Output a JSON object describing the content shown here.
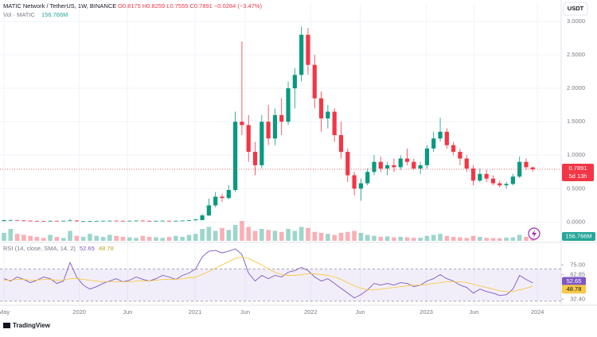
{
  "chart_data": {
    "type": "candlestick",
    "header": {
      "symbol": "MATIC Network / TetherUS, 1W, BINANCE",
      "ohlc_text": "O0.8175 H0.8259 L0.7555 C0.7891 −0.0284 (−3.47%)"
    },
    "currency_button": "USDT",
    "countdown": "5d 13h",
    "brand": "TradingView",
    "up_color": "#089981",
    "down_color": "#f23645",
    "ylim": [
      -0.28,
      3.26
    ],
    "yticks": [
      {
        "value": 0,
        "label": "0.0000"
      },
      {
        "value": 0.5,
        "label": "0.5000"
      },
      {
        "value": 1,
        "label": "1.0000"
      },
      {
        "value": 1.5,
        "label": "1.5000"
      },
      {
        "value": 2,
        "label": "2.0000"
      },
      {
        "value": 2.5,
        "label": "2.5000"
      },
      {
        "value": 3,
        "label": "3.0000"
      }
    ],
    "xlim": [
      -0.6,
      84.3
    ],
    "xticks": [
      {
        "value": 0,
        "label": "May"
      },
      {
        "value": 11.4,
        "label": "2020"
      },
      {
        "value": 18.7,
        "label": "Jun"
      },
      {
        "value": 28.9,
        "label": "2021"
      },
      {
        "value": 36.5,
        "label": "Jun"
      },
      {
        "value": 46.4,
        "label": "2022"
      },
      {
        "value": 53.9,
        "label": "Jun"
      },
      {
        "value": 63.9,
        "label": "2023"
      },
      {
        "value": 71.1,
        "label": "Jun"
      },
      {
        "value": 80.7,
        "label": "2024"
      }
    ],
    "candles": [
      [
        0.015,
        0.035,
        0.012,
        0.028
      ],
      [
        0.028,
        0.038,
        0.022,
        0.03
      ],
      [
        0.03,
        0.034,
        0.02,
        0.024
      ],
      [
        0.024,
        0.03,
        0.018,
        0.021
      ],
      [
        0.021,
        0.026,
        0.016,
        0.018
      ],
      [
        0.018,
        0.022,
        0.014,
        0.016
      ],
      [
        0.016,
        0.02,
        0.013,
        0.015
      ],
      [
        0.015,
        0.022,
        0.014,
        0.019
      ],
      [
        0.019,
        0.021,
        0.014,
        0.016
      ],
      [
        0.016,
        0.022,
        0.015,
        0.02
      ],
      [
        0.02,
        0.048,
        0.018,
        0.024
      ],
      [
        0.024,
        0.026,
        0.008,
        0.012
      ],
      [
        0.012,
        0.016,
        0.009,
        0.014
      ],
      [
        0.014,
        0.018,
        0.012,
        0.016
      ],
      [
        0.016,
        0.02,
        0.014,
        0.018
      ],
      [
        0.018,
        0.022,
        0.016,
        0.02
      ],
      [
        0.02,
        0.024,
        0.017,
        0.021
      ],
      [
        0.021,
        0.026,
        0.018,
        0.019
      ],
      [
        0.019,
        0.022,
        0.016,
        0.018
      ],
      [
        0.018,
        0.021,
        0.016,
        0.02
      ],
      [
        0.02,
        0.024,
        0.018,
        0.022
      ],
      [
        0.022,
        0.025,
        0.018,
        0.019
      ],
      [
        0.019,
        0.022,
        0.016,
        0.018
      ],
      [
        0.018,
        0.021,
        0.016,
        0.019
      ],
      [
        0.019,
        0.023,
        0.017,
        0.02
      ],
      [
        0.02,
        0.022,
        0.017,
        0.018
      ],
      [
        0.018,
        0.02,
        0.016,
        0.019
      ],
      [
        0.019,
        0.024,
        0.018,
        0.022
      ],
      [
        0.022,
        0.03,
        0.02,
        0.027
      ],
      [
        0.027,
        0.045,
        0.025,
        0.04
      ],
      [
        0.03,
        0.12,
        0.03,
        0.1
      ],
      [
        0.1,
        0.35,
        0.09,
        0.25
      ],
      [
        0.25,
        0.45,
        0.22,
        0.38
      ],
      [
        0.38,
        0.42,
        0.3,
        0.36
      ],
      [
        0.36,
        0.55,
        0.34,
        0.48
      ],
      [
        0.48,
        1.65,
        0.45,
        1.5
      ],
      [
        1.5,
        2.7,
        1.3,
        1.45
      ],
      [
        1.45,
        1.6,
        0.9,
        1.05
      ],
      [
        1.05,
        1.2,
        0.7,
        0.85
      ],
      [
        0.85,
        1.6,
        0.8,
        1.5
      ],
      [
        1.5,
        1.75,
        1.15,
        1.25
      ],
      [
        1.25,
        1.7,
        1.15,
        1.6
      ],
      [
        1.6,
        1.85,
        1.3,
        1.5
      ],
      [
        1.5,
        2.1,
        1.45,
        2.0
      ],
      [
        2.0,
        2.3,
        1.7,
        2.2
      ],
      [
        2.2,
        2.92,
        2.1,
        2.8
      ],
      [
        2.8,
        2.9,
        2.2,
        2.35
      ],
      [
        2.35,
        2.5,
        1.7,
        1.85
      ],
      [
        1.85,
        1.95,
        1.35,
        1.55
      ],
      [
        1.55,
        1.75,
        1.4,
        1.65
      ],
      [
        1.65,
        1.7,
        1.2,
        1.3
      ],
      [
        1.3,
        1.5,
        0.95,
        1.05
      ],
      [
        1.05,
        1.1,
        0.6,
        0.7
      ],
      [
        0.7,
        0.75,
        0.4,
        0.5
      ],
      [
        0.5,
        0.65,
        0.32,
        0.58
      ],
      [
        0.58,
        0.8,
        0.55,
        0.75
      ],
      [
        0.75,
        1.0,
        0.7,
        0.9
      ],
      [
        0.9,
        0.98,
        0.75,
        0.8
      ],
      [
        0.8,
        0.9,
        0.7,
        0.85
      ],
      [
        0.85,
        0.95,
        0.75,
        0.82
      ],
      [
        0.82,
        1.0,
        0.78,
        0.95
      ],
      [
        0.95,
        1.1,
        0.85,
        0.9
      ],
      [
        0.9,
        0.95,
        0.78,
        0.8
      ],
      [
        0.8,
        0.9,
        0.72,
        0.85
      ],
      [
        0.85,
        1.15,
        0.8,
        1.1
      ],
      [
        1.1,
        1.35,
        1.05,
        1.25
      ],
      [
        1.25,
        1.56,
        1.2,
        1.35
      ],
      [
        1.35,
        1.4,
        1.1,
        1.15
      ],
      [
        1.15,
        1.2,
        1.0,
        1.05
      ],
      [
        1.05,
        1.1,
        0.85,
        0.95
      ],
      [
        0.95,
        1.0,
        0.75,
        0.8
      ],
      [
        0.8,
        0.85,
        0.55,
        0.62
      ],
      [
        0.62,
        0.8,
        0.6,
        0.72
      ],
      [
        0.72,
        0.78,
        0.6,
        0.65
      ],
      [
        0.65,
        0.7,
        0.55,
        0.58
      ],
      [
        0.58,
        0.62,
        0.52,
        0.55
      ],
      [
        0.55,
        0.6,
        0.5,
        0.57
      ],
      [
        0.57,
        0.72,
        0.55,
        0.68
      ],
      [
        0.68,
        0.98,
        0.66,
        0.9
      ],
      [
        0.9,
        0.95,
        0.78,
        0.82
      ],
      [
        0.8175,
        0.8259,
        0.7555,
        0.7891
      ]
    ],
    "volume": {
      "legend": "Vol · MATIC",
      "label": "156.766M",
      "color": "#26a69a",
      "values": [
        400,
        600,
        350,
        300,
        250,
        200,
        150,
        300,
        200,
        150,
        500,
        250,
        200,
        350,
        250,
        200,
        300,
        250,
        200,
        180,
        150,
        250,
        200,
        180,
        150,
        200,
        250,
        200,
        300,
        350,
        600,
        700,
        500,
        650,
        550,
        800,
        1000,
        700,
        500,
        600,
        550,
        500,
        450,
        600,
        500,
        700,
        650,
        450,
        400,
        350,
        300,
        400,
        450,
        500,
        400,
        300,
        250,
        200,
        220,
        180,
        200,
        180,
        150,
        160,
        250,
        300,
        350,
        250,
        200,
        180,
        150,
        250,
        200,
        150,
        140,
        130,
        160,
        180,
        300,
        200,
        156.766
      ]
    },
    "rsi": {
      "legend": "RSI (14, close, SMA, 14, 2)",
      "ylim": [
        25,
        100
      ],
      "yticks": [
        {
          "value": 75,
          "label": "75.00"
        },
        62.85,
        {
          "value": 32.4,
          "label": "32.40"
        }
      ],
      "bands": [
        70,
        30
      ],
      "series": [
        {
          "name": "RSI",
          "color": "#7e57c2",
          "values": [
            58,
            55,
            60,
            57,
            53,
            56,
            60,
            58,
            52,
            55,
            78,
            60,
            50,
            45,
            48,
            52,
            55,
            58,
            54,
            56,
            60,
            57,
            55,
            58,
            62,
            60,
            57,
            62,
            65,
            70,
            85,
            92,
            93,
            90,
            92,
            95,
            88,
            65,
            55,
            62,
            58,
            62,
            60,
            66,
            68,
            72,
            68,
            60,
            55,
            58,
            52,
            46,
            40,
            34,
            38,
            44,
            52,
            50,
            52,
            50,
            53,
            52,
            48,
            50,
            55,
            58,
            63,
            58,
            55,
            50,
            47,
            40,
            45,
            42,
            40,
            37,
            38,
            45,
            62,
            57,
            52.65
          ]
        },
        {
          "name": "SMA",
          "color": "#f7c948",
          "values": [
            56,
            56,
            57,
            57,
            56,
            56,
            57,
            57,
            56,
            56,
            58,
            58,
            57,
            56,
            55,
            54,
            54,
            54,
            54,
            54,
            55,
            55,
            55,
            56,
            57,
            57,
            57,
            58,
            59,
            60,
            63,
            67,
            71,
            75,
            79,
            83,
            85,
            83,
            79,
            75,
            70,
            66,
            63,
            62,
            62,
            63,
            64,
            64,
            63,
            62,
            60,
            57,
            53,
            49,
            46,
            44,
            44,
            45,
            46,
            47,
            48,
            49,
            50,
            50,
            51,
            52,
            53,
            54,
            54,
            54,
            53,
            51,
            49,
            47,
            45,
            43,
            42,
            42,
            44,
            46,
            48.78
          ]
        }
      ]
    }
  }
}
